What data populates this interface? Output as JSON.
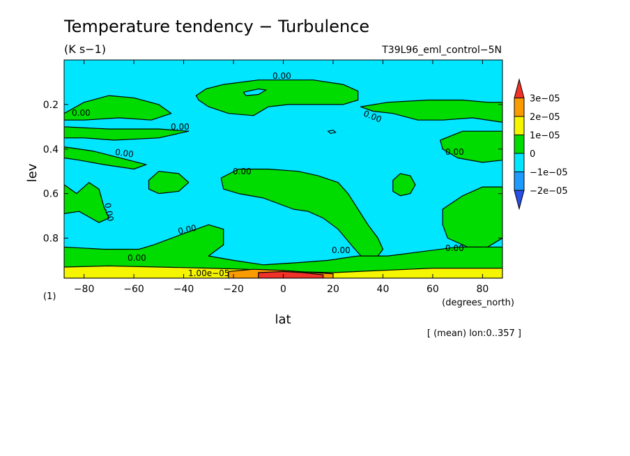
{
  "chart_data": {
    "type": "contour",
    "title": "Temperature tendency − Turbulence",
    "units": "(K s−1)",
    "experiment": "T39L96_eml_control−5N",
    "xlabel": "lat",
    "xunits": "(degrees_north)",
    "ylabel": "lev",
    "yunits": "(1)",
    "note": "[ (mean) lon:0..357 ]",
    "xlim": [
      -88,
      88
    ],
    "ylim": [
      0.0,
      0.98
    ],
    "y_reversed": true,
    "x_ticks": [
      -80,
      -60,
      -40,
      -20,
      0,
      20,
      40,
      60,
      80
    ],
    "x_tick_labels": [
      "−80",
      "−60",
      "−40",
      "−20",
      "0",
      "20",
      "40",
      "60",
      "80"
    ],
    "y_ticks": [
      0.2,
      0.4,
      0.6,
      0.8
    ],
    "y_tick_labels": [
      "0.2",
      "0.4",
      "0.6",
      "0.8"
    ],
    "colorbar": {
      "labels": [
        "3e−05",
        "2e−05",
        "1e−05",
        "0",
        "−1e−05",
        "−2e−05"
      ],
      "colors": [
        "#f03228",
        "#fa9b00",
        "#f5f500",
        "#00dc00",
        "#00e6ff",
        "#1e9bff",
        "#2850e6"
      ]
    },
    "contour_labels": [
      "0.00",
      "0.00",
      "0.00",
      "0.00",
      "0.00",
      "0.00",
      "0.00",
      "0.00",
      "0.00",
      "0.00",
      "0.00",
      "0.00",
      "1.00e−05"
    ],
    "field_regions": [
      {
        "level": 0,
        "name": "tropopause-band",
        "polygon": [
          [
            -35,
            0.16
          ],
          [
            -31,
            0.13
          ],
          [
            -24,
            0.11
          ],
          [
            -10,
            0.09
          ],
          [
            0,
            0.09
          ],
          [
            12,
            0.09
          ],
          [
            24,
            0.11
          ],
          [
            30,
            0.14
          ],
          [
            30,
            0.18
          ],
          [
            24,
            0.2
          ],
          [
            14,
            0.2
          ],
          [
            2,
            0.2
          ],
          [
            -6,
            0.21
          ],
          [
            -12,
            0.25
          ],
          [
            -22,
            0.24
          ],
          [
            -30,
            0.21
          ],
          [
            -34,
            0.18
          ]
        ]
      },
      {
        "level": 0,
        "name": "sh-upper-1",
        "polygon": [
          [
            -88,
            0.24
          ],
          [
            -80,
            0.19
          ],
          [
            -70,
            0.16
          ],
          [
            -60,
            0.17
          ],
          [
            -50,
            0.2
          ],
          [
            -45,
            0.24
          ],
          [
            -53,
            0.27
          ],
          [
            -66,
            0.26
          ],
          [
            -80,
            0.27
          ],
          [
            -88,
            0.27
          ]
        ]
      },
      {
        "level": 0,
        "name": "sh-upper-2",
        "polygon": [
          [
            -88,
            0.3
          ],
          [
            -70,
            0.31
          ],
          [
            -50,
            0.31
          ],
          [
            -38,
            0.32
          ],
          [
            -50,
            0.35
          ],
          [
            -68,
            0.36
          ],
          [
            -80,
            0.35
          ],
          [
            -88,
            0.35
          ]
        ]
      },
      {
        "level": 0,
        "name": "sh-mid",
        "polygon": [
          [
            -88,
            0.39
          ],
          [
            -76,
            0.41
          ],
          [
            -62,
            0.45
          ],
          [
            -55,
            0.47
          ],
          [
            -60,
            0.49
          ],
          [
            -72,
            0.47
          ],
          [
            -82,
            0.45
          ],
          [
            -88,
            0.44
          ]
        ]
      },
      {
        "level": 0,
        "name": "nh-upper-1",
        "polygon": [
          [
            31,
            0.21
          ],
          [
            42,
            0.19
          ],
          [
            58,
            0.18
          ],
          [
            72,
            0.18
          ],
          [
            82,
            0.19
          ],
          [
            88,
            0.19
          ],
          [
            88,
            0.28
          ],
          [
            76,
            0.26
          ],
          [
            64,
            0.27
          ],
          [
            54,
            0.27
          ],
          [
            44,
            0.24
          ],
          [
            36,
            0.23
          ]
        ]
      },
      {
        "level": 0,
        "name": "nh-upper-2",
        "polygon": [
          [
            63,
            0.36
          ],
          [
            72,
            0.32
          ],
          [
            80,
            0.32
          ],
          [
            88,
            0.32
          ],
          [
            88,
            0.45
          ],
          [
            80,
            0.46
          ],
          [
            70,
            0.44
          ],
          [
            64,
            0.4
          ]
        ]
      },
      {
        "level": 0,
        "name": "nh-blob",
        "polygon": [
          [
            44,
            0.54
          ],
          [
            47,
            0.51
          ],
          [
            51,
            0.52
          ],
          [
            53,
            0.56
          ],
          [
            51,
            0.6
          ],
          [
            47,
            0.61
          ],
          [
            44,
            0.59
          ]
        ]
      },
      {
        "level": 0,
        "name": "sh-blob",
        "polygon": [
          [
            -54,
            0.54
          ],
          [
            -50,
            0.5
          ],
          [
            -42,
            0.51
          ],
          [
            -38,
            0.55
          ],
          [
            -42,
            0.59
          ],
          [
            -50,
            0.6
          ],
          [
            -54,
            0.58
          ]
        ]
      },
      {
        "level": 0,
        "name": "equator-tongue",
        "polygon": [
          [
            -25,
            0.53
          ],
          [
            -18,
            0.49
          ],
          [
            -6,
            0.49
          ],
          [
            6,
            0.5
          ],
          [
            14,
            0.52
          ],
          [
            22,
            0.55
          ],
          [
            26,
            0.6
          ],
          [
            30,
            0.67
          ],
          [
            34,
            0.74
          ],
          [
            38,
            0.8
          ],
          [
            40,
            0.85
          ],
          [
            38,
            0.88
          ],
          [
            32,
            0.89
          ],
          [
            28,
            0.84
          ],
          [
            22,
            0.76
          ],
          [
            16,
            0.71
          ],
          [
            10,
            0.68
          ],
          [
            4,
            0.67
          ],
          [
            -8,
            0.62
          ],
          [
            -18,
            0.6
          ],
          [
            -24,
            0.58
          ]
        ]
      },
      {
        "level": 0,
        "name": "sh-polar",
        "polygon": [
          [
            -88,
            0.56
          ],
          [
            -83,
            0.6
          ],
          [
            -78,
            0.55
          ],
          [
            -74,
            0.58
          ],
          [
            -72,
            0.66
          ],
          [
            -70,
            0.71
          ],
          [
            -74,
            0.73
          ],
          [
            -82,
            0.68
          ],
          [
            -88,
            0.69
          ]
        ]
      },
      {
        "level": 0,
        "name": "nh-polar",
        "polygon": [
          [
            64,
            0.67
          ],
          [
            72,
            0.61
          ],
          [
            80,
            0.57
          ],
          [
            88,
            0.57
          ],
          [
            88,
            0.8
          ],
          [
            82,
            0.84
          ],
          [
            74,
            0.84
          ],
          [
            66,
            0.8
          ],
          [
            64,
            0.74
          ]
        ]
      },
      {
        "level": 0,
        "name": "boundary-layer",
        "polygon": [
          [
            -88,
            0.84
          ],
          [
            -72,
            0.85
          ],
          [
            -58,
            0.85
          ],
          [
            -52,
            0.83
          ],
          [
            -40,
            0.78
          ],
          [
            -30,
            0.74
          ],
          [
            -24,
            0.76
          ],
          [
            -24,
            0.83
          ],
          [
            -30,
            0.88
          ],
          [
            -20,
            0.9
          ],
          [
            -8,
            0.92
          ],
          [
            6,
            0.91
          ],
          [
            18,
            0.9
          ],
          [
            30,
            0.88
          ],
          [
            42,
            0.88
          ],
          [
            56,
            0.86
          ],
          [
            70,
            0.84
          ],
          [
            88,
            0.84
          ],
          [
            88,
            0.98
          ],
          [
            -88,
            0.98
          ]
        ]
      },
      {
        "level": 1,
        "name": "surface-yellow",
        "polygon": [
          [
            -88,
            0.93
          ],
          [
            -70,
            0.925
          ],
          [
            -50,
            0.93
          ],
          [
            -30,
            0.935
          ],
          [
            -15,
            0.94
          ],
          [
            0,
            0.95
          ],
          [
            20,
            0.955
          ],
          [
            40,
            0.945
          ],
          [
            60,
            0.935
          ],
          [
            80,
            0.935
          ],
          [
            88,
            0.935
          ],
          [
            88,
            0.98
          ],
          [
            -88,
            0.98
          ]
        ]
      },
      {
        "level": 2,
        "name": "surface-orange",
        "polygon": [
          [
            -22,
            0.95
          ],
          [
            -12,
            0.94
          ],
          [
            0,
            0.945
          ],
          [
            12,
            0.955
          ],
          [
            20,
            0.96
          ],
          [
            20,
            0.98
          ],
          [
            -22,
            0.98
          ]
        ]
      },
      {
        "level": 3,
        "name": "surface-red",
        "polygon": [
          [
            -10,
            0.955
          ],
          [
            0,
            0.95
          ],
          [
            8,
            0.955
          ],
          [
            16,
            0.965
          ],
          [
            16,
            0.98
          ],
          [
            -10,
            0.98
          ]
        ]
      }
    ],
    "interior_holes": [
      {
        "polygon": [
          [
            -16,
            0.145
          ],
          [
            -10,
            0.13
          ],
          [
            -7,
            0.135
          ],
          [
            -10,
            0.155
          ],
          [
            -15,
            0.16
          ]
        ]
      },
      {
        "polygon": [
          [
            18,
            0.32
          ],
          [
            20,
            0.315
          ],
          [
            21,
            0.325
          ],
          [
            19,
            0.33
          ]
        ]
      }
    ]
  }
}
